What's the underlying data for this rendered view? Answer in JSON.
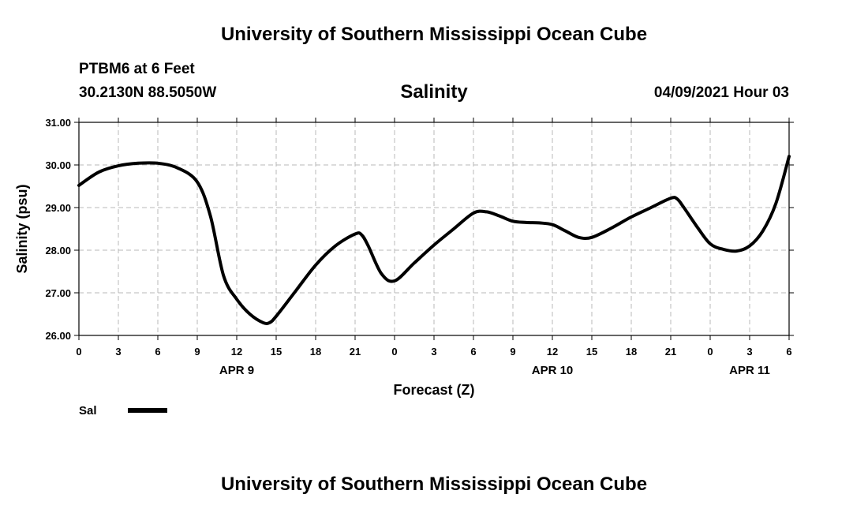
{
  "header": {
    "title": "University of Southern Mississippi Ocean Cube",
    "station": "PTBM6 at 6 Feet",
    "coords": "30.2130N  88.5050W",
    "valid_time": "04/09/2021 Hour 03"
  },
  "footer": {
    "title": "University of Southern Mississippi Ocean Cube"
  },
  "chart_data": {
    "type": "line",
    "title": "Salinity",
    "xlabel": "Forecast (Z)",
    "ylabel": "Salinity (psu)",
    "ylim": [
      26.0,
      31.0
    ],
    "xlim": [
      0,
      54
    ],
    "y_ticks": [
      "26.00",
      "27.00",
      "28.00",
      "29.00",
      "30.00",
      "31.00"
    ],
    "x_ticks": [
      "0",
      "3",
      "6",
      "9",
      "12",
      "15",
      "18",
      "21",
      "0",
      "3",
      "6",
      "9",
      "12",
      "15",
      "18",
      "21",
      "0",
      "3",
      "6"
    ],
    "day_labels": [
      {
        "label": "APR 9",
        "hour": 12
      },
      {
        "label": "APR 10",
        "hour": 36
      },
      {
        "label": "APR 11",
        "hour": 51
      }
    ],
    "grid": true,
    "legend_position": "bottom-left",
    "series": [
      {
        "name": "Sal",
        "color": "#000000",
        "x": [
          0,
          1.5,
          3,
          4.5,
          6,
          7.5,
          9,
          10,
          11,
          12,
          13,
          14,
          14.5,
          15,
          16.5,
          18,
          19.5,
          21,
          21.5,
          22,
          23,
          24,
          25.5,
          27,
          28.5,
          30,
          31,
          32,
          33,
          34,
          35,
          36,
          37,
          38,
          39,
          40.5,
          42,
          43.5,
          45,
          45.5,
          46,
          47,
          48,
          49,
          50,
          51,
          52,
          53,
          54
        ],
        "values": [
          29.52,
          29.83,
          29.98,
          30.04,
          30.04,
          29.93,
          29.6,
          28.8,
          27.4,
          26.85,
          26.5,
          26.3,
          26.3,
          26.45,
          27.05,
          27.65,
          28.1,
          28.38,
          28.36,
          28.1,
          27.45,
          27.28,
          27.7,
          28.12,
          28.5,
          28.87,
          28.9,
          28.8,
          28.68,
          28.65,
          28.64,
          28.6,
          28.45,
          28.3,
          28.3,
          28.52,
          28.78,
          29.0,
          29.22,
          29.2,
          29.0,
          28.55,
          28.15,
          28.02,
          27.98,
          28.1,
          28.45,
          29.1,
          30.2
        ]
      }
    ]
  }
}
